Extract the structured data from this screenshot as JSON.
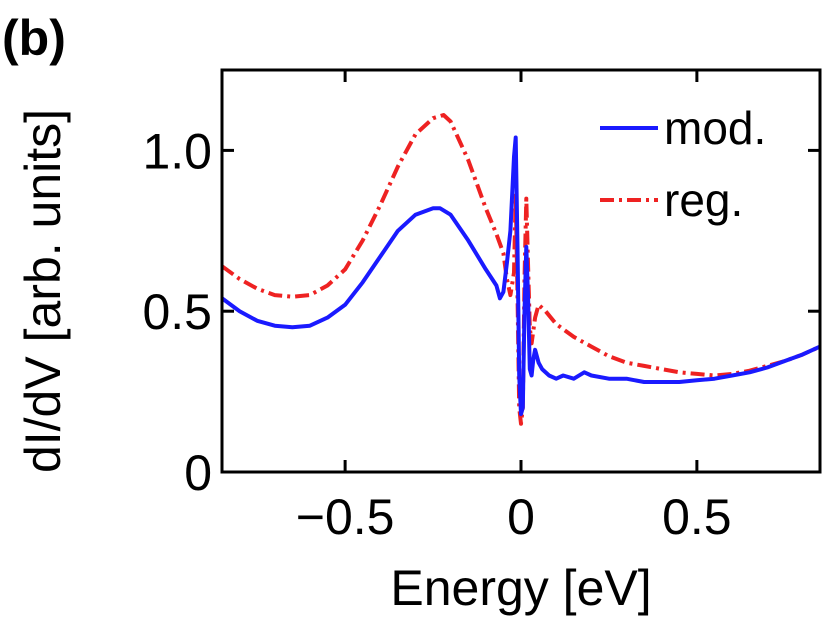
{
  "panel_label": "(b)",
  "chart_data": {
    "type": "line",
    "title": "",
    "xlabel": "Energy [eV]",
    "ylabel": "dI/dV [arb. units]",
    "xlim": [
      -0.85,
      0.85
    ],
    "ylim": [
      0,
      1.25
    ],
    "x_ticks": [
      -0.5,
      0,
      0.5
    ],
    "x_tick_labels": [
      "−0.5",
      "0",
      "0.5"
    ],
    "y_ticks": [
      0,
      0.5,
      1.0
    ],
    "y_tick_labels": [
      "0",
      "0.5",
      "1.0"
    ],
    "grid": false,
    "legend_position": "top-right",
    "series": [
      {
        "name": "mod.",
        "color": "#1a1aff",
        "style": "solid",
        "x": [
          -0.85,
          -0.8,
          -0.75,
          -0.7,
          -0.65,
          -0.6,
          -0.55,
          -0.5,
          -0.45,
          -0.4,
          -0.35,
          -0.3,
          -0.25,
          -0.23,
          -0.2,
          -0.15,
          -0.1,
          -0.07,
          -0.06,
          -0.05,
          -0.04,
          -0.03,
          -0.02,
          -0.015,
          -0.01,
          -0.005,
          0.0,
          0.005,
          0.01,
          0.015,
          0.02,
          0.025,
          0.03,
          0.035,
          0.04,
          0.05,
          0.06,
          0.08,
          0.1,
          0.12,
          0.15,
          0.18,
          0.2,
          0.25,
          0.3,
          0.35,
          0.4,
          0.45,
          0.5,
          0.55,
          0.6,
          0.65,
          0.7,
          0.75,
          0.8,
          0.85
        ],
        "values": [
          0.54,
          0.5,
          0.47,
          0.455,
          0.45,
          0.455,
          0.48,
          0.52,
          0.59,
          0.67,
          0.75,
          0.8,
          0.82,
          0.82,
          0.8,
          0.72,
          0.63,
          0.58,
          0.54,
          0.56,
          0.65,
          0.75,
          0.98,
          1.04,
          0.7,
          0.3,
          0.18,
          0.2,
          0.5,
          0.7,
          0.55,
          0.32,
          0.3,
          0.35,
          0.38,
          0.34,
          0.32,
          0.3,
          0.29,
          0.3,
          0.29,
          0.31,
          0.3,
          0.29,
          0.29,
          0.28,
          0.28,
          0.28,
          0.285,
          0.29,
          0.3,
          0.31,
          0.325,
          0.345,
          0.365,
          0.39
        ]
      },
      {
        "name": "reg.",
        "color": "#ee2222",
        "style": "dash-dot",
        "x": [
          -0.85,
          -0.8,
          -0.75,
          -0.7,
          -0.65,
          -0.6,
          -0.55,
          -0.5,
          -0.45,
          -0.4,
          -0.35,
          -0.3,
          -0.25,
          -0.22,
          -0.2,
          -0.15,
          -0.1,
          -0.07,
          -0.05,
          -0.04,
          -0.03,
          -0.02,
          -0.015,
          -0.01,
          -0.005,
          0.0,
          0.005,
          0.01,
          0.015,
          0.02,
          0.025,
          0.03,
          0.04,
          0.05,
          0.07,
          0.1,
          0.15,
          0.2,
          0.25,
          0.3,
          0.35,
          0.4,
          0.45,
          0.5,
          0.55,
          0.6,
          0.65,
          0.7,
          0.75,
          0.8,
          0.85
        ],
        "values": [
          0.64,
          0.6,
          0.57,
          0.55,
          0.545,
          0.55,
          0.58,
          0.63,
          0.72,
          0.83,
          0.95,
          1.05,
          1.1,
          1.11,
          1.09,
          0.97,
          0.82,
          0.74,
          0.68,
          0.6,
          0.55,
          0.62,
          0.86,
          0.55,
          0.2,
          0.15,
          0.2,
          0.6,
          0.85,
          0.65,
          0.45,
          0.4,
          0.48,
          0.52,
          0.5,
          0.46,
          0.42,
          0.39,
          0.36,
          0.34,
          0.33,
          0.32,
          0.31,
          0.305,
          0.3,
          0.305,
          0.315,
          0.33,
          0.345,
          0.365,
          0.39
        ]
      }
    ]
  }
}
